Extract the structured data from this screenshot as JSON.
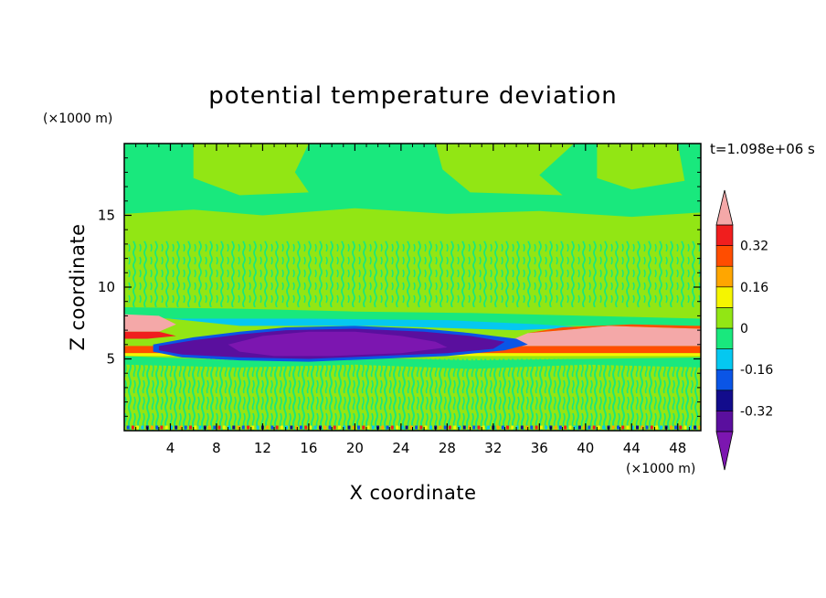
{
  "chart_data": {
    "type": "heatmap",
    "title": "potential temperature deviation",
    "xlabel": "X coordinate",
    "ylabel": "Z coordinate",
    "x_unit": "(×1000 m)",
    "y_unit": "(×1000 m)",
    "time_label": "t=1.098e+06 s",
    "xlim": [
      0,
      50
    ],
    "ylim": [
      0,
      20
    ],
    "x_ticks": [
      4,
      8,
      12,
      16,
      20,
      24,
      28,
      32,
      36,
      40,
      44,
      48
    ],
    "y_ticks": [
      5,
      10,
      15
    ],
    "colorbar": {
      "levels": [
        -0.4,
        -0.32,
        -0.24,
        -0.16,
        -0.08,
        0,
        0.08,
        0.16,
        0.24,
        0.32,
        0.4
      ],
      "labels": [
        "-0.32",
        "-0.16",
        "0",
        "0.16",
        "0.32"
      ],
      "label_values": [
        -0.32,
        -0.16,
        0,
        0.16,
        0.32
      ],
      "colors": [
        "#5a0f9e",
        "#120c8c",
        "#0a55e6",
        "#05c8f0",
        "#19e87d",
        "#92e614",
        "#f5f500",
        "#ffa600",
        "#ff4d00",
        "#f01e1e"
      ],
      "under_color": "#7c16b0",
      "over_color": "#f4a8a8"
    },
    "regions": [
      {
        "name": "background",
        "value": 0.04
      },
      {
        "name": "upper-layer-z15-20",
        "value": -0.02
      },
      {
        "name": "noisy-layer-z9-13",
        "value": 0.02
      },
      {
        "name": "cool-anomaly-x8-34-z5.5-7.5",
        "value": -0.36
      },
      {
        "name": "cool-core-x10-30-z5-6.5",
        "value": -0.42
      },
      {
        "name": "warm-anomaly-x35-50-z6-7",
        "value": 0.42
      },
      {
        "name": "warm-anomaly-x0-4-z7-8",
        "value": 0.42
      },
      {
        "name": "thin-warm-line-z5.6",
        "value": 0.3
      },
      {
        "name": "noisy-boundary-layer-z0-5",
        "value": 0.02
      }
    ]
  }
}
